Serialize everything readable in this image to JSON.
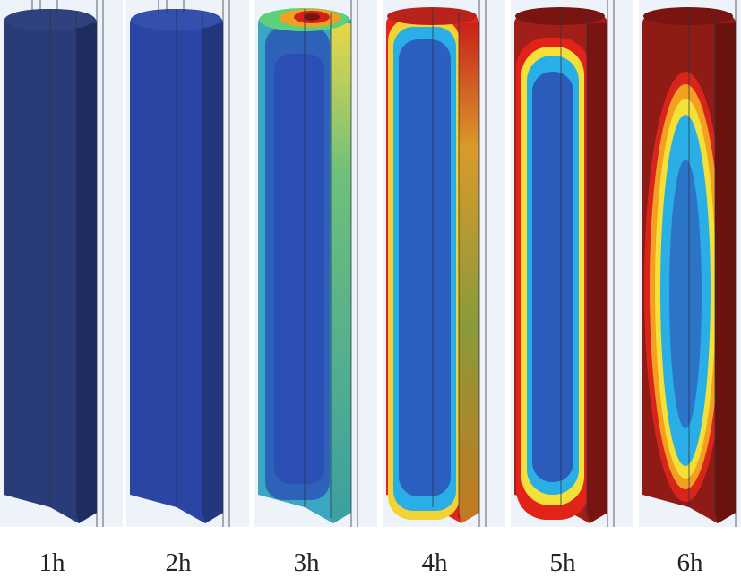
{
  "panels": [
    {
      "label": "1h",
      "style": "uniform",
      "base": "#2a3b79",
      "side": "#1f2c60"
    },
    {
      "label": "2h",
      "style": "uniform",
      "base": "#2b45a4",
      "side": "#22377f"
    },
    {
      "label": "3h",
      "style": "heat3"
    },
    {
      "label": "4h",
      "style": "heat4"
    },
    {
      "label": "5h",
      "style": "heat5"
    },
    {
      "label": "6h",
      "style": "heat6"
    }
  ],
  "colors": {
    "background": "#eef3f9",
    "cold": "#2b4fb5",
    "cool": "#2aaee6",
    "warm": "#f3e038",
    "hot": "#e2231a",
    "hottest": "#7a1410"
  }
}
